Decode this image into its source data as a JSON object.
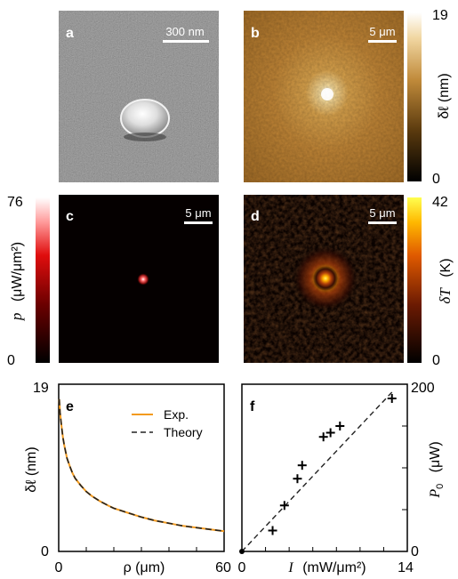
{
  "panels": {
    "a": {
      "letter": "a",
      "scalebar": "300 nm"
    },
    "b": {
      "letter": "b",
      "scalebar": "5 μm"
    },
    "c": {
      "letter": "c",
      "scalebar": "5 μm"
    },
    "d": {
      "letter": "d",
      "scalebar": "5 μm"
    },
    "e": {
      "letter": "e"
    },
    "f": {
      "letter": "f"
    }
  },
  "colorbars": {
    "dl": {
      "max": "19",
      "min": "0",
      "label": "δℓ (nm)"
    },
    "p": {
      "max": "76",
      "min": "0",
      "label_sym": "p",
      "label_unit": "(μW/μm²)"
    },
    "dT": {
      "max": "42",
      "min": "0",
      "label_sym": "δT",
      "label_unit": "(K)"
    }
  },
  "chart_data": [
    {
      "type": "line",
      "panel": "e",
      "xlabel": "ρ (μm)",
      "ylabel": "δℓ (nm)",
      "xlim": [
        0,
        60
      ],
      "ylim": [
        0,
        19
      ],
      "xticks": [
        "0",
        "60"
      ],
      "yticks": [
        "19",
        "0"
      ],
      "legend": "top-right",
      "series": [
        {
          "name": "Exp.",
          "color": "#f39a1e",
          "style": "solid",
          "x": [
            0.2,
            0.5,
            1,
            1.5,
            2,
            3,
            4,
            5,
            6,
            8,
            10,
            12,
            15,
            18,
            20,
            25,
            30,
            35,
            40,
            45,
            50,
            55,
            60
          ],
          "y": [
            17.3,
            15.8,
            14.3,
            13.0,
            12.1,
            10.6,
            9.7,
            8.9,
            8.3,
            7.5,
            6.8,
            6.3,
            5.7,
            5.2,
            4.9,
            4.4,
            3.9,
            3.5,
            3.2,
            2.9,
            2.7,
            2.5,
            2.3
          ]
        },
        {
          "name": "Theory",
          "color": "#222222",
          "style": "dashed",
          "x": [
            0.2,
            0.5,
            1,
            1.5,
            2,
            3,
            4,
            5,
            6,
            8,
            10,
            12,
            15,
            18,
            20,
            25,
            30,
            35,
            40,
            45,
            50,
            55,
            60
          ],
          "y": [
            17.3,
            15.8,
            14.3,
            13.0,
            12.1,
            10.6,
            9.7,
            8.9,
            8.3,
            7.5,
            6.8,
            6.3,
            5.7,
            5.2,
            4.9,
            4.4,
            3.9,
            3.5,
            3.2,
            2.9,
            2.7,
            2.5,
            2.3
          ]
        }
      ]
    },
    {
      "type": "scatter",
      "panel": "f",
      "xlabel_sym": "I",
      "xlabel_unit": "(mW/μm²)",
      "ylabel_sym": "P",
      "ylabel_sub": "0",
      "ylabel_unit": "(μW)",
      "xlim": [
        0,
        14
      ],
      "ylim": [
        0,
        200
      ],
      "xticks": [
        "0",
        "14"
      ],
      "yticks": [
        "200",
        "0"
      ],
      "points": {
        "x": [
          2.6,
          3.6,
          4.7,
          5.1,
          6.9,
          7.5,
          8.3,
          12.7
        ],
        "y": [
          25,
          55,
          87,
          103,
          137,
          142,
          150,
          183
        ]
      },
      "fit": {
        "x": [
          0,
          12.8
        ],
        "y": [
          0,
          192
        ],
        "style": "dashed"
      }
    }
  ]
}
